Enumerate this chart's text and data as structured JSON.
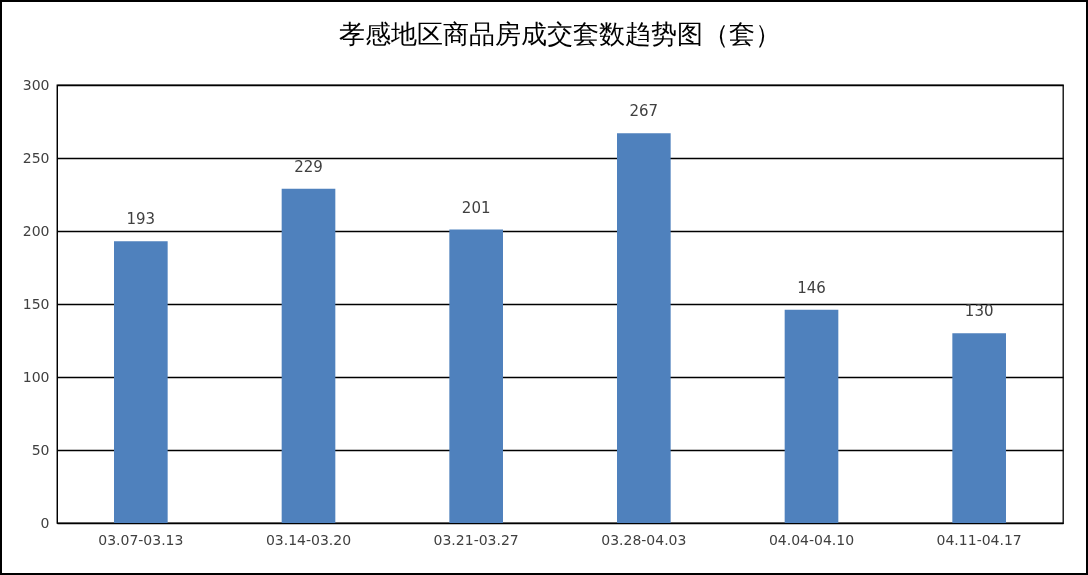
{
  "chart_data": {
    "type": "bar",
    "title": "孝感地区商品房成交套数趋势图（套）",
    "categories": [
      "03.07-03.13",
      "03.14-03.20",
      "03.21-03.27",
      "03.28-04.03",
      "04.04-04.10",
      "04.11-04.17"
    ],
    "values": [
      193,
      229,
      201,
      267,
      146,
      130
    ],
    "color": "#4f81bd",
    "ylim": [
      0,
      300
    ],
    "yticks": [
      0,
      50,
      100,
      150,
      200,
      250,
      300
    ],
    "grid": "y",
    "data_labels": true
  }
}
